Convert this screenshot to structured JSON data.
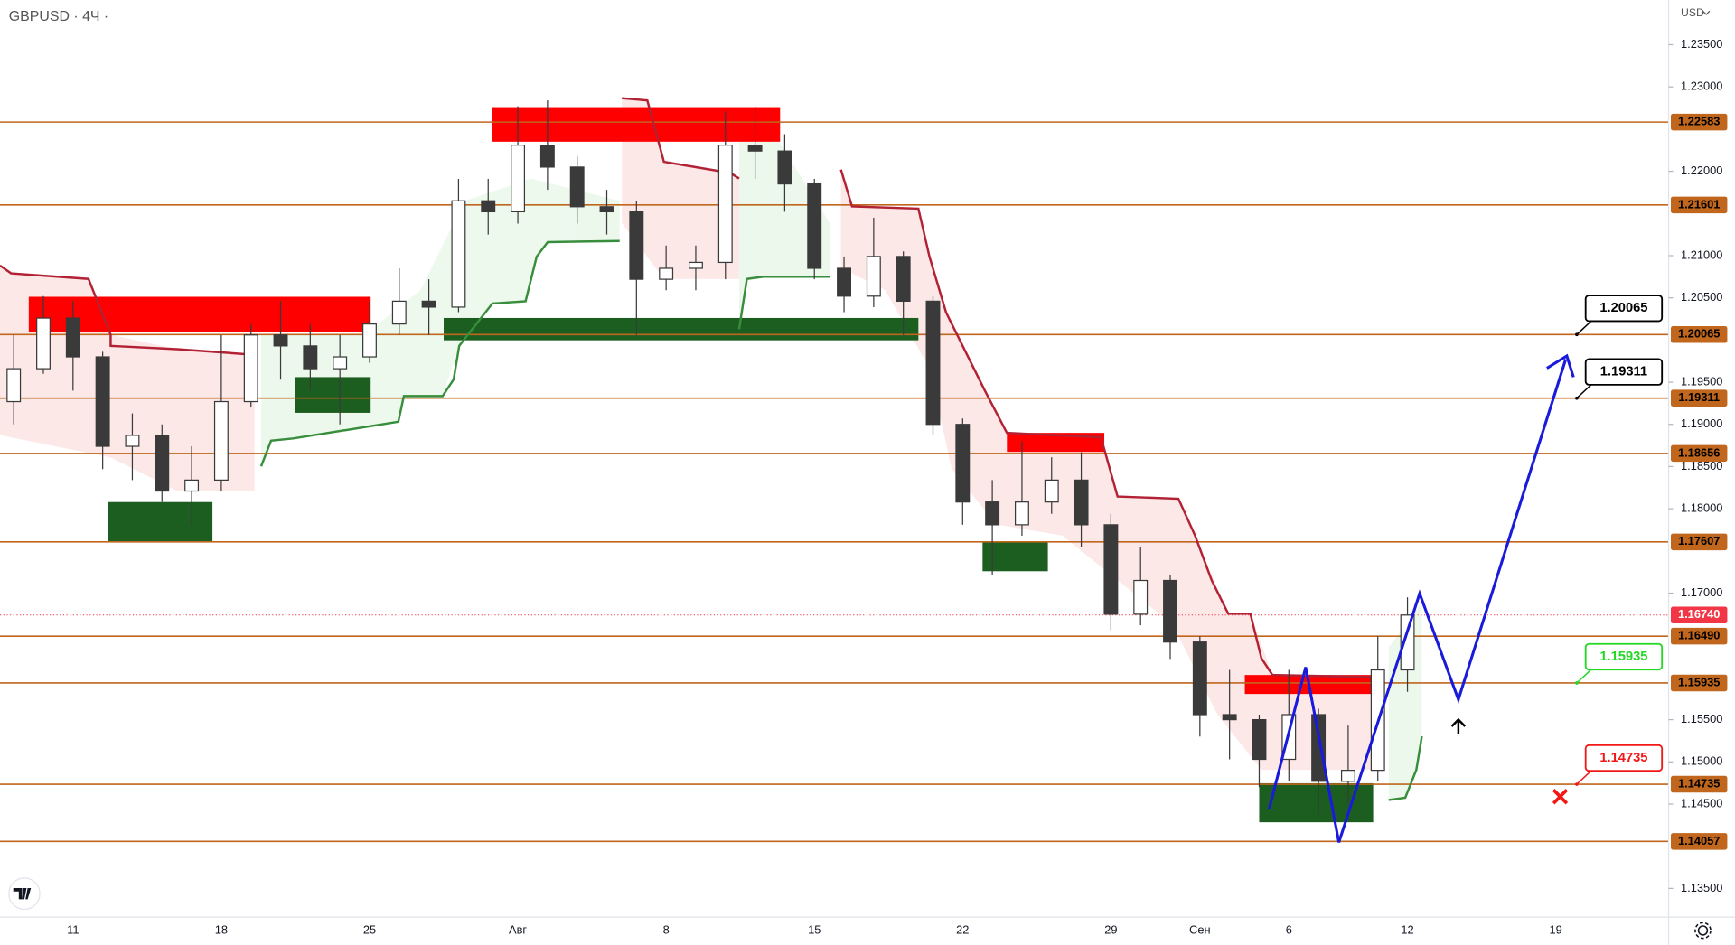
{
  "chart_data": {
    "type": "candlestick",
    "title": "GBPUSD · 4Ч ·",
    "currency": "USD",
    "categories": [
      null,
      null,
      "11",
      null,
      null,
      null,
      null,
      "18",
      null,
      null,
      null,
      null,
      "25",
      null,
      null,
      null,
      null,
      "Авг",
      null,
      null,
      null,
      null,
      "8",
      null,
      null,
      null,
      null,
      "15",
      null,
      null,
      null,
      null,
      "22",
      null,
      null,
      null,
      null,
      "29",
      null,
      null,
      "Сен",
      null,
      null,
      "6",
      null,
      null,
      null,
      "12",
      null,
      null,
      null,
      null,
      "19",
      null,
      null,
      null
    ],
    "open": [
      1.1927,
      1.1966,
      1.2026,
      1.198,
      1.1874,
      1.1887,
      1.1821,
      1.1834,
      1.1927,
      1.2006,
      1.1993,
      1.1966,
      1.198,
      1.2019,
      1.2046,
      1.2039,
      1.2165,
      1.2152,
      1.2231,
      1.2205,
      1.2158,
      1.2152,
      1.2072,
      1.2085,
      1.2092,
      1.2231,
      1.2224,
      1.2185,
      1.2085,
      1.2052,
      1.2099,
      1.2046,
      1.19,
      1.1808,
      1.1781,
      1.1808,
      1.1834,
      1.1781,
      1.1675,
      1.1715,
      1.1642,
      1.1556,
      1.155,
      1.1503,
      1.1556,
      1.1477,
      1.149,
      1.1609,
      null,
      null,
      null,
      null,
      null,
      null,
      null,
      null
    ],
    "high": [
      1.2006,
      1.2052,
      1.2046,
      1.1986,
      1.1913,
      1.19,
      1.1874,
      1.2006,
      1.2019,
      1.2046,
      1.2019,
      1.2006,
      1.2046,
      1.2085,
      1.2072,
      1.2191,
      1.2191,
      1.2277,
      1.2284,
      1.2218,
      1.2178,
      1.2165,
      1.2112,
      1.2112,
      1.2271,
      1.2277,
      1.2244,
      1.2191,
      1.2099,
      1.2145,
      1.2105,
      1.2052,
      1.1907,
      1.1834,
      1.188,
      1.1861,
      1.1867,
      1.1794,
      1.1755,
      1.1722,
      1.1649,
      1.1609,
      1.1556,
      1.1609,
      1.1563,
      1.1543,
      1.1649,
      1.1695,
      null,
      null,
      null,
      null,
      null,
      null,
      null,
      null
    ],
    "low": [
      1.19,
      1.196,
      1.194,
      1.1847,
      1.1834,
      1.1808,
      1.1781,
      1.1821,
      1.192,
      1.1953,
      1.194,
      1.19,
      1.1973,
      1.2006,
      1.2006,
      1.2033,
      1.2125,
      1.2138,
      1.2178,
      1.2138,
      1.2125,
      1.2006,
      1.2059,
      1.2059,
      1.2072,
      1.2191,
      1.2152,
      1.2072,
      1.2033,
      1.2039,
      1.2006,
      1.1887,
      1.1781,
      1.1722,
      1.1768,
      1.1794,
      1.1755,
      1.1656,
      1.1662,
      1.1622,
      1.153,
      1.1503,
      1.147,
      1.1477,
      1.1437,
      1.145,
      1.1477,
      1.1583,
      null,
      null,
      null,
      null,
      null,
      null,
      null,
      null
    ],
    "close": [
      1.1966,
      1.2026,
      1.198,
      1.1874,
      1.1887,
      1.1821,
      1.1834,
      1.1927,
      1.2006,
      1.1993,
      1.1966,
      1.198,
      1.2019,
      1.2046,
      1.2039,
      1.2165,
      1.2152,
      1.2231,
      1.2205,
      1.2158,
      1.2152,
      1.2072,
      1.2085,
      1.2092,
      1.2231,
      1.2224,
      1.2185,
      1.2085,
      1.2052,
      1.2099,
      1.2046,
      1.19,
      1.1808,
      1.1781,
      1.1808,
      1.1834,
      1.1781,
      1.1675,
      1.1715,
      1.1642,
      1.1556,
      1.155,
      1.1503,
      1.1556,
      1.1477,
      1.149,
      1.1609,
      1.1674,
      null,
      null,
      null,
      null,
      null,
      null,
      null,
      null
    ],
    "up_color": "#ffffff",
    "down_color": "#3a3a3a",
    "wick_color": "#3a3a3a",
    "ylim": [
      1.1316,
      1.2403
    ],
    "yticks": [
      {
        "value": 1.135,
        "label": "1.13500"
      },
      {
        "value": 1.145,
        "label": "1.14500"
      },
      {
        "value": 1.15,
        "label": "1.15000"
      },
      {
        "value": 1.155,
        "label": "1.15500"
      },
      {
        "value": 1.17,
        "label": "1.17000"
      },
      {
        "value": 1.18,
        "label": "1.18000"
      },
      {
        "value": 1.185,
        "label": "1.18500"
      },
      {
        "value": 1.19,
        "label": "1.19000"
      },
      {
        "value": 1.195,
        "label": "1.19500"
      },
      {
        "value": 1.205,
        "label": "1.20500"
      },
      {
        "value": 1.21,
        "label": "1.21000"
      },
      {
        "value": 1.22,
        "label": "1.22000"
      },
      {
        "value": 1.23,
        "label": "1.23000"
      },
      {
        "value": 1.235,
        "label": "1.23500"
      }
    ],
    "levels": [
      {
        "value": 1.22583,
        "label": "1.22583"
      },
      {
        "value": 1.21601,
        "label": "1.21601"
      },
      {
        "value": 1.20065,
        "label": "1.20065"
      },
      {
        "value": 1.19311,
        "label": "1.19311"
      },
      {
        "value": 1.18656,
        "label": "1.18656"
      },
      {
        "value": 1.17607,
        "label": "1.17607"
      },
      {
        "value": 1.1649,
        "label": "1.16490"
      },
      {
        "value": 1.15935,
        "label": "1.15935"
      },
      {
        "value": 1.14735,
        "label": "1.14735"
      },
      {
        "value": 1.14057,
        "label": "1.14057"
      }
    ],
    "level_color": "#c0661d",
    "last_price": {
      "value": 1.1674,
      "label": "1.16740"
    },
    "last_price_color": "#f23645",
    "callouts": [
      {
        "value": 1.20065,
        "label": "1.20065",
        "color": "#000000"
      },
      {
        "value": 1.19311,
        "label": "1.19311",
        "color": "#000000"
      },
      {
        "value": 1.15935,
        "label": "1.15935",
        "color": "#22d822"
      },
      {
        "value": 1.14735,
        "label": "1.14735",
        "color": "#f21818"
      }
    ]
  }
}
